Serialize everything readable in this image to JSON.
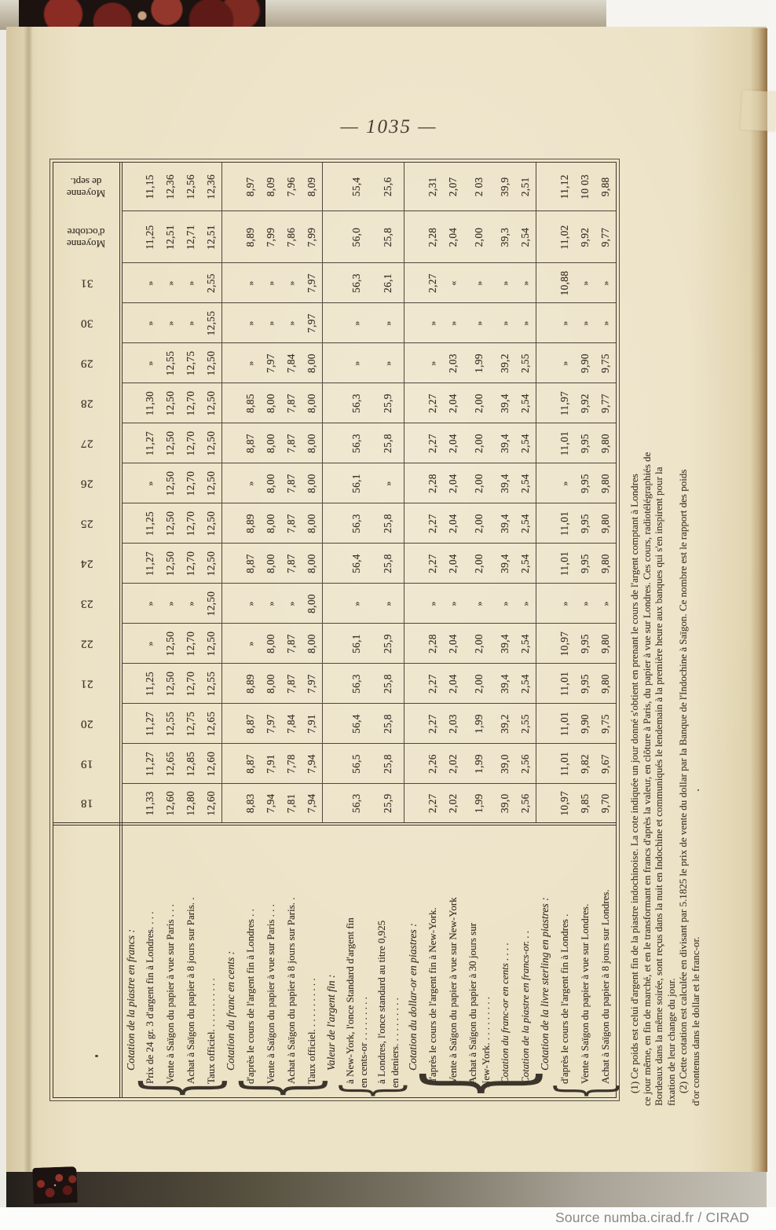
{
  "page": {
    "number": "— 1035 —",
    "source": "Source numba.cirad.fr / CIRAD"
  },
  "colors": {
    "page_cream": "#ece2c6",
    "ink": "#3c352b",
    "cover_marble_red": "#7a2420"
  },
  "table": {
    "days": [
      "18",
      "19",
      "20",
      "21",
      "22",
      "23",
      "24",
      "25",
      "26",
      "27",
      "28",
      "29",
      "30",
      "31"
    ],
    "averages": [
      {
        "lines": [
          "Moyenne",
          "d'octobre"
        ]
      },
      {
        "lines": [
          "Moyenne",
          "de sept."
        ]
      }
    ],
    "groups": [
      {
        "header": "Cotation de la piastre en francs :",
        "rows": [
          {
            "label": [
              "Prix de 24 gr. 3 d'argent fin à Londres. . . ."
            ],
            "values": [
              "11,33",
              "11,27",
              "11,27",
              "11,25",
              "»",
              "»",
              "11,27",
              "11,25",
              "»",
              "11,27",
              "11,30",
              "»",
              "»",
              "»",
              "11,25",
              "11,15"
            ]
          },
          {
            "label": [
              "Vente à Saïgon du papier à vue sur Paris . . ."
            ],
            "values": [
              "12,60",
              "12,65",
              "12,55",
              "12,50",
              "12,50",
              "»",
              "12,50",
              "12,50",
              "12,50",
              "12,50",
              "12,50",
              "12,55",
              "»",
              "»",
              "12,51",
              "12,36"
            ]
          },
          {
            "label": [
              "Achat à Saïgon du papier à 8 jours sur Paris. ."
            ],
            "values": [
              "12,80",
              "12,85",
              "12,75",
              "12,70",
              "12,70",
              "»",
              "12,70",
              "12,70",
              "12,70",
              "12,70",
              "12,70",
              "12,75",
              "»",
              "»",
              "12,71",
              "12,56"
            ]
          },
          {
            "label": [
              "Taux officiel. . . . . . . . . . ."
            ],
            "values": [
              "12,60",
              "12,60",
              "12,65",
              "12,55",
              "12,50",
              "12,50",
              "12,50",
              "12,50",
              "12,50",
              "12,50",
              "12,50",
              "12,50",
              "12,55",
              "2,55",
              "12,51",
              "12,36"
            ]
          }
        ]
      },
      {
        "header": "Cotation du franc en cents :",
        "rows": [
          {
            "label": [
              "d'après le cours de l'argent fin à Londres . ."
            ],
            "values": [
              "8,83",
              "8,87",
              "8,87",
              "8,89",
              "»",
              "»",
              "8,87",
              "8,89",
              "»",
              "8,87",
              "8,85",
              "»",
              "»",
              "»",
              "8,89",
              "8,97"
            ]
          },
          {
            "label": [
              "Vente à Saïgon du papier à vue sur Paris . . ."
            ],
            "values": [
              "7,94",
              "7,91",
              "7,97",
              "8,00",
              "8,00",
              "»",
              "8,00",
              "8,00",
              "8,00",
              "8,00",
              "8,00",
              "7,97",
              "»",
              "»",
              "7,99",
              "8,09"
            ]
          },
          {
            "label": [
              "Achat à Saïgon du papier à 8 jours sur Paris. ."
            ],
            "values": [
              "7,81",
              "7,78",
              "7,84",
              "7,87",
              "7,87",
              "»",
              "7,87",
              "7,87",
              "7,87",
              "7,87",
              "7,87",
              "7,84",
              "»",
              "»",
              "7,86",
              "7,96"
            ]
          },
          {
            "label": [
              "Taux officiel. . . . . . . . . . ."
            ],
            "values": [
              "7,94",
              "7,94",
              "7,91",
              "7,97",
              "8,00",
              "8,00",
              "8,00",
              "8,00",
              "8,00",
              "8,00",
              "8,00",
              "8,00",
              "7,97",
              "7,97",
              "7,99",
              "8,09"
            ]
          }
        ]
      },
      {
        "header": "Valeur de l'argent fin :",
        "rows": [
          {
            "label": [
              "à New-York, l'once Standard d'argent fin",
              "en cents-or . . . . . . . . ."
            ],
            "values": [
              "56,3",
              "56,5",
              "56,4",
              "56,3",
              "56,1",
              "»",
              "56,4",
              "56,3",
              "56,1",
              "56,3",
              "56,3",
              "»",
              "»",
              "56,3",
              "56,0",
              "55,4"
            ]
          },
          {
            "label": [
              "à Londres, l'once standard au titre 0,925",
              "en deniers. . . . . . . . . ."
            ],
            "values": [
              "25,9",
              "25,8",
              "25,8",
              "25,8",
              "25,9",
              "»",
              "25,8",
              "25,8",
              "»",
              "25,8",
              "25,9",
              "»",
              "»",
              "26,1",
              "25,8",
              "25,6"
            ]
          }
        ]
      },
      {
        "header": "Cotation du dollar-or en piastres :",
        "rows": [
          {
            "label": [
              "d'après le cours de l'argent fin à New-York."
            ],
            "values": [
              "2,27",
              "2,26",
              "2,27",
              "2,27",
              "2,28",
              "»",
              "2,27",
              "2,27",
              "2,28",
              "2,27",
              "2,27",
              "»",
              "»",
              "2,27",
              "2,28",
              "2,31"
            ]
          },
          {
            "label": [
              "Vente à Saïgon du papier à vue sur New-York"
            ],
            "values": [
              "2,02",
              "2,02",
              "2,03",
              "2,04",
              "2,04",
              "»",
              "2,04",
              "2,04",
              "2,04",
              "2,04",
              "2,04",
              "2,03",
              "»",
              "«",
              "2,04",
              "2,07"
            ]
          },
          {
            "label": [
              "Achat à Saïgon du papier à 30 jours sur",
              "New-York. . . . . . . . . ."
            ],
            "values": [
              "1,99",
              "1,99",
              "1,99",
              "2,00",
              "2,00",
              "»",
              "2,00",
              "2,00",
              "2,00",
              "2,00",
              "2,00",
              "1,99",
              "»",
              "»",
              "2,00",
              "2 03"
            ]
          },
          {
            "label": [
              "Cotation du franc-or en cents . . . ."
            ],
            "italic": true,
            "values": [
              "39,0",
              "39,0",
              "39,2",
              "39,4",
              "39,4",
              "»",
              "39,4",
              "39,4",
              "39,4",
              "39,4",
              "39,4",
              "39,2",
              "»",
              "»",
              "39,3",
              "39,9"
            ]
          },
          {
            "label": [
              "Cotation de la piastre en francs-or. . ."
            ],
            "italic": true,
            "values": [
              "2,56",
              "2,56",
              "2,55",
              "2,54",
              "2,54",
              "»",
              "2,54",
              "2,54",
              "2,54",
              "2,54",
              "2,54",
              "2,55",
              "»",
              "»",
              "2,54",
              "2,51"
            ]
          }
        ]
      },
      {
        "header": "Cotation de la livre sterling en piastres :",
        "rows": [
          {
            "label": [
              "d'après le cours de l'argent fin à Londres ."
            ],
            "values": [
              "10,97",
              "11,01",
              "11,01",
              "11,01",
              "10,97",
              "»",
              "11,01",
              "11,01",
              "»",
              "11,01",
              "11,97",
              "»",
              "»",
              "10,88",
              "11,02",
              "11,12"
            ]
          },
          {
            "label": [
              "Vente à Saïgon du papier à vue sur Londres."
            ],
            "values": [
              "9,85",
              "9,82",
              "9,90",
              "9,95",
              "9,95",
              "»",
              "9,95",
              "9,95",
              "9,95",
              "9,95",
              "9,92",
              "9,90",
              "»",
              "»",
              "9,92",
              "10 03"
            ]
          },
          {
            "label": [
              "Achat à Saïgon du papier à 8 jours sur Londres."
            ],
            "values": [
              "9,70",
              "9,67",
              "9,75",
              "9,80",
              "9,80",
              "»",
              "9,80",
              "9,80",
              "9,80",
              "9,80",
              "9,77",
              "9,75",
              "»",
              "»",
              "9,77",
              "9,88"
            ]
          }
        ]
      }
    ]
  },
  "footnotes": [
    "(1) Ce poids est celui d'argent fin de la piastre indochinoise. La cote indiquée un jour donné s'obtient en prenant le cours de l'argent comptant à Londres",
    "ce jour même, en fin de marché, et en le transformant en francs d'après la valeur, en clôture à Paris, du papier à vue sur Londres. Ces cours, radiotélégraphiés de",
    "Bordeaux dans la même soirée, sont reçus dans la nuit en Indochine et communiqués le lendemain à la première heure aux banques qui s'en inspirent pour la",
    "fixation de leur change du jour.",
    "(2) Cette cotation est calculée en divisant par 5.1825 le prix de vente du dollar par la Banque de l'Indochine à Saïgon. Ce nombre est le rapport des poids",
    "d'or contenus dans le dollar et le franc-or."
  ]
}
